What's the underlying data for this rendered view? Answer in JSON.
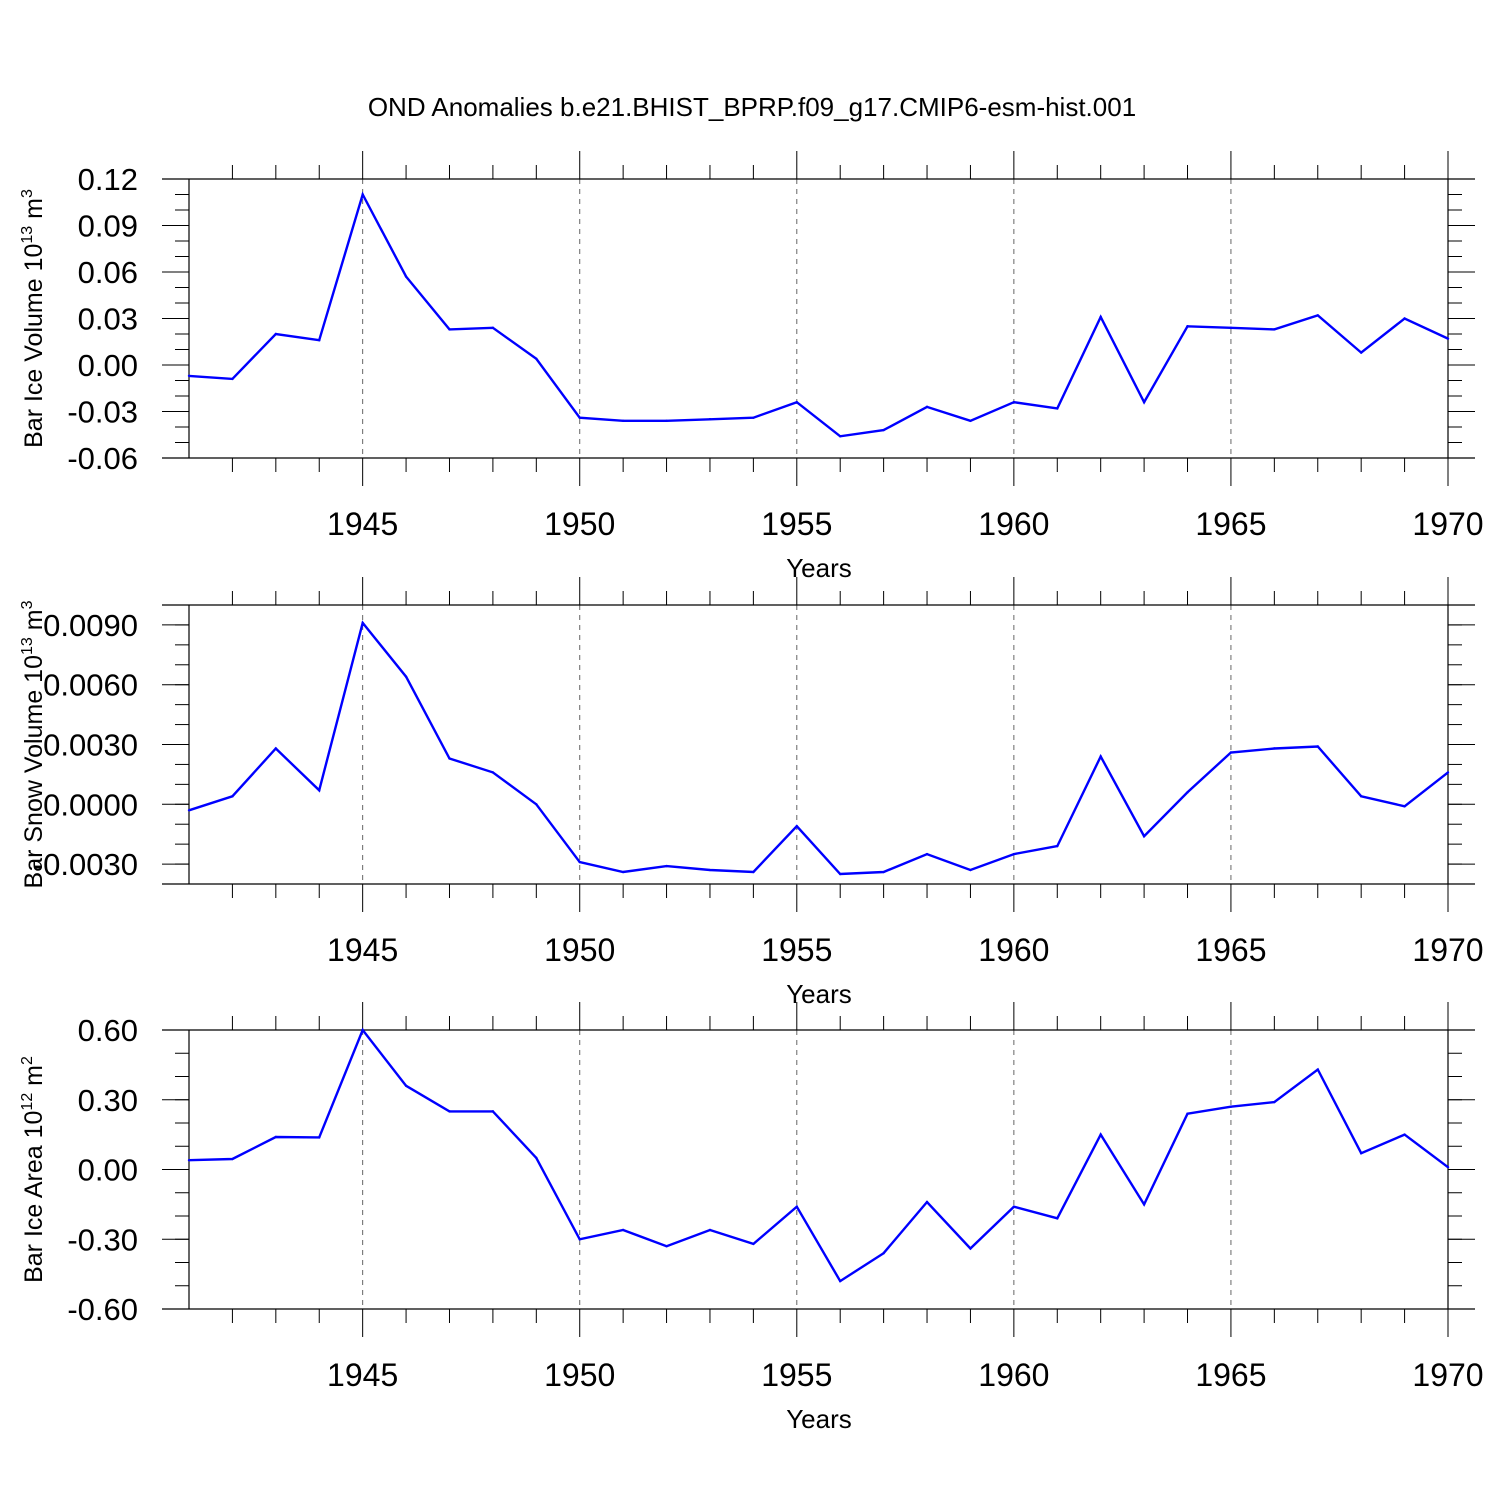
{
  "figure": {
    "title": "OND Anomalies b.e21.BHIST_BPRP.f09_g17.CMIP6-esm-hist.001"
  },
  "colors": {
    "series_line": "#0000ff",
    "axis": "#000000",
    "gridline": "#666666",
    "background": "#ffffff"
  },
  "chart_data": [
    {
      "type": "line",
      "ylabel_base": "Bar Ice Volume 10",
      "ylabel_exp": "13",
      "ylabel_unit": " m",
      "ylabel_unit_exp": "3",
      "xlabel": "Years",
      "xlim": [
        1941,
        1970
      ],
      "ylim": [
        -0.06,
        0.12
      ],
      "yticks": [
        -0.06,
        -0.03,
        0.0,
        0.03,
        0.06,
        0.09,
        0.12
      ],
      "ytick_labels": [
        "-0.06",
        "-0.03",
        "0.00",
        "0.03",
        "0.06",
        "0.09",
        "0.12"
      ],
      "y_minor_step": 0.01,
      "xticks": [
        1945,
        1950,
        1955,
        1960,
        1965,
        1970
      ],
      "xtick_labels": [
        "1945",
        "1950",
        "1955",
        "1960",
        "1965",
        "1970"
      ],
      "x": [
        1941,
        1942,
        1943,
        1944,
        1945,
        1946,
        1947,
        1948,
        1949,
        1950,
        1951,
        1952,
        1953,
        1954,
        1955,
        1956,
        1957,
        1958,
        1959,
        1960,
        1961,
        1962,
        1963,
        1964,
        1965,
        1966,
        1967,
        1968,
        1969,
        1970
      ],
      "values": [
        -0.007,
        -0.009,
        0.02,
        0.016,
        0.11,
        0.057,
        0.023,
        0.024,
        0.004,
        -0.034,
        -0.036,
        -0.036,
        -0.035,
        -0.034,
        -0.024,
        -0.046,
        -0.042,
        -0.027,
        -0.036,
        -0.024,
        -0.028,
        0.031,
        -0.024,
        0.025,
        0.024,
        0.023,
        0.032,
        0.008,
        0.03,
        0.017
      ]
    },
    {
      "type": "line",
      "ylabel_base": "Bar Snow Volume 10",
      "ylabel_exp": "13",
      "ylabel_unit": " m",
      "ylabel_unit_exp": "3",
      "xlabel": "Years",
      "xlim": [
        1941,
        1970
      ],
      "ylim": [
        -0.004,
        0.01
      ],
      "yticks": [
        -0.003,
        0.0,
        0.003,
        0.006,
        0.009
      ],
      "ytick_labels": [
        "-0.0030",
        "0.0000",
        "0.0030",
        "0.0060",
        "0.0090"
      ],
      "y_minor_step": 0.001,
      "xticks": [
        1945,
        1950,
        1955,
        1960,
        1965,
        1970
      ],
      "xtick_labels": [
        "1945",
        "1950",
        "1955",
        "1960",
        "1965",
        "1970"
      ],
      "x": [
        1941,
        1942,
        1943,
        1944,
        1945,
        1946,
        1947,
        1948,
        1949,
        1950,
        1951,
        1952,
        1953,
        1954,
        1955,
        1956,
        1957,
        1958,
        1959,
        1960,
        1961,
        1962,
        1963,
        1964,
        1965,
        1966,
        1967,
        1968,
        1969,
        1970
      ],
      "values": [
        -0.0003,
        0.0004,
        0.0028,
        0.0007,
        0.0091,
        0.0064,
        0.0023,
        0.0016,
        0.0,
        -0.0029,
        -0.0034,
        -0.0031,
        -0.0033,
        -0.0034,
        -0.0011,
        -0.0035,
        -0.0034,
        -0.0025,
        -0.0033,
        -0.0025,
        -0.0021,
        0.0024,
        -0.0016,
        0.0006,
        0.0026,
        0.0028,
        0.0029,
        0.0004,
        -0.0001,
        0.0016
      ]
    },
    {
      "type": "line",
      "ylabel_base": "Bar Ice Area 10",
      "ylabel_exp": "12",
      "ylabel_unit": " m",
      "ylabel_unit_exp": "2",
      "xlabel": "Years",
      "xlim": [
        1941,
        1970
      ],
      "ylim": [
        -0.6,
        0.6
      ],
      "yticks": [
        -0.6,
        -0.3,
        0.0,
        0.3,
        0.6
      ],
      "ytick_labels": [
        "-0.60",
        "-0.30",
        "0.00",
        "0.30",
        "0.60"
      ],
      "y_minor_step": 0.1,
      "xticks": [
        1945,
        1950,
        1955,
        1960,
        1965,
        1970
      ],
      "xtick_labels": [
        "1945",
        "1950",
        "1955",
        "1960",
        "1965",
        "1970"
      ],
      "x": [
        1941,
        1942,
        1943,
        1944,
        1945,
        1946,
        1947,
        1948,
        1949,
        1950,
        1951,
        1952,
        1953,
        1954,
        1955,
        1956,
        1957,
        1958,
        1959,
        1960,
        1961,
        1962,
        1963,
        1964,
        1965,
        1966,
        1967,
        1968,
        1969,
        1970
      ],
      "values": [
        0.04,
        0.045,
        0.14,
        0.138,
        0.6,
        0.36,
        0.25,
        0.25,
        0.05,
        -0.3,
        -0.26,
        -0.33,
        -0.26,
        -0.32,
        -0.16,
        -0.48,
        -0.36,
        -0.14,
        -0.34,
        -0.16,
        -0.21,
        0.15,
        -0.15,
        0.24,
        0.27,
        0.29,
        0.43,
        0.07,
        0.15,
        0.01
      ]
    }
  ]
}
